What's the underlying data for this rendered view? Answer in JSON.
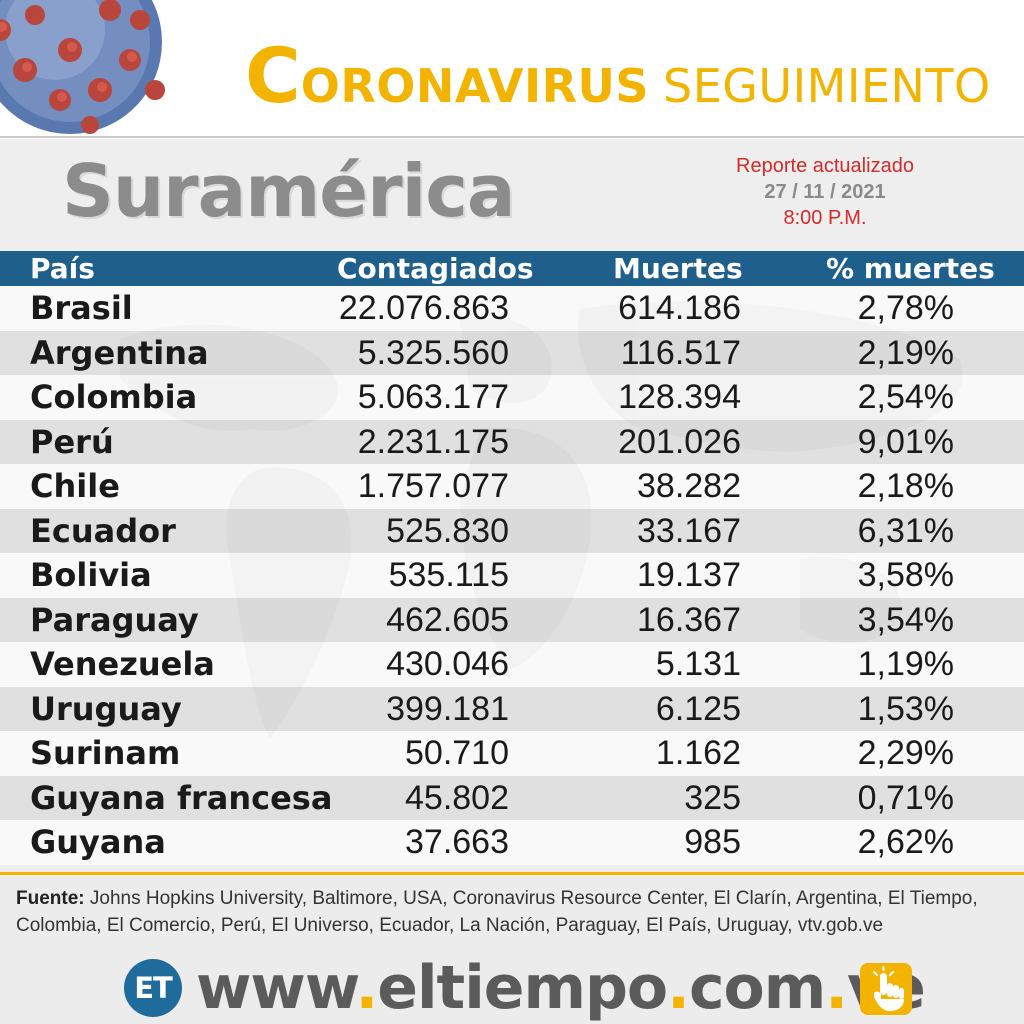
{
  "header": {
    "title_initial": "C",
    "title_first_rest": "ORONAVIRUS",
    "title_second": "SEGUIMIENTO"
  },
  "panel": {
    "region": "Suramérica",
    "report_label": "Reporte actualizado",
    "report_date": "27 / 11 / 2021",
    "report_time": "8:00 P.M."
  },
  "table": {
    "columns": [
      "País",
      "Contagiados",
      "Muertes",
      "% muertes"
    ],
    "rows": [
      {
        "country": "Brasil",
        "cases": "22.076.863",
        "deaths": "614.186",
        "pct": "2,78%"
      },
      {
        "country": "Argentina",
        "cases": "5.325.560",
        "deaths": "116.517",
        "pct": "2,19%"
      },
      {
        "country": "Colombia",
        "cases": "5.063.177",
        "deaths": "128.394",
        "pct": "2,54%"
      },
      {
        "country": "Perú",
        "cases": "2.231.175",
        "deaths": "201.026",
        "pct": "9,01%"
      },
      {
        "country": "Chile",
        "cases": "1.757.077",
        "deaths": "38.282",
        "pct": "2,18%"
      },
      {
        "country": "Ecuador",
        "cases": "525.830",
        "deaths": "33.167",
        "pct": "6,31%"
      },
      {
        "country": "Bolivia",
        "cases": "535.115",
        "deaths": "19.137",
        "pct": "3,58%"
      },
      {
        "country": "Paraguay",
        "cases": "462.605",
        "deaths": "16.367",
        "pct": "3,54%"
      },
      {
        "country": "Venezuela",
        "cases": "430.046",
        "deaths": "5.131",
        "pct": "1,19%"
      },
      {
        "country": "Uruguay",
        "cases": "399.181",
        "deaths": "6.125",
        "pct": "1,53%"
      },
      {
        "country": "Surinam",
        "cases": "50.710",
        "deaths": "1.162",
        "pct": "2,29%"
      },
      {
        "country": "Guyana francesa",
        "cases": "45.802",
        "deaths": "325",
        "pct": "0,71%"
      },
      {
        "country": "Guyana",
        "cases": "37.663",
        "deaths": "985",
        "pct": "2,62%"
      }
    ]
  },
  "footer": {
    "source_label": "Fuente:",
    "source_text": " Johns Hopkins University, Baltimore, USA, Coronavirus Resource Center,  El Clarín, Argentina, El Tiempo, Colombia, El Comercio, Perú, El Universo, Ecuador, La Nación, Paraguay, El País, Uruguay, vtv.gob.ve",
    "logo_text": "ET",
    "url_parts": [
      "www",
      ".",
      "eltiempo",
      ".",
      "com",
      ".",
      "ve"
    ]
  },
  "colors": {
    "accent_yellow": "#f2b400",
    "header_blue": "#1f5f8b",
    "report_red": "#d42a2a",
    "region_gray": "#8c8c8c"
  },
  "icons": [
    "virus-illustration",
    "world-map-watermark",
    "pointing-hand-icon"
  ]
}
